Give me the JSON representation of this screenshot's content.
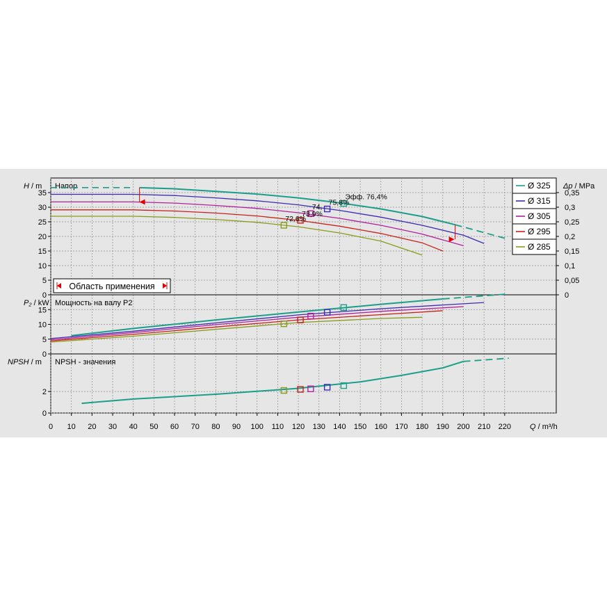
{
  "chart_data": {
    "type": "line",
    "x_axis": {
      "label_symbol": "Q",
      "label_unit": "/ m³/h",
      "range": [
        0,
        245
      ],
      "ticks": [
        0,
        10,
        20,
        30,
        40,
        50,
        60,
        70,
        80,
        90,
        100,
        110,
        120,
        130,
        140,
        150,
        160,
        170,
        180,
        190,
        200,
        210,
        220
      ]
    },
    "legend": {
      "placement": "right",
      "items": [
        {
          "label": "Ø 325",
          "color": "#1a9e8a"
        },
        {
          "label": "Ø 315",
          "color": "#3c2bb0"
        },
        {
          "label": "Ø 305",
          "color": "#b0209a"
        },
        {
          "label": "Ø 295",
          "color": "#c8201a"
        },
        {
          "label": "Ø 285",
          "color": "#8a9a1a"
        }
      ]
    },
    "panels": [
      {
        "id": "head",
        "title": "Напор",
        "ylabel_symbol": "H",
        "ylabel_unit": "/ m",
        "ylim": [
          0,
          40
        ],
        "yticks": [
          0,
          5,
          10,
          15,
          20,
          25,
          30,
          35
        ],
        "y2label_symbol": "Δp",
        "y2label_unit": "/ MPa",
        "y2ticks": [
          "0",
          "0,05",
          "0,1",
          "0,15",
          "0,2",
          "0,25",
          "0,3",
          "0,35"
        ],
        "series": [
          {
            "name": "Ø 325",
            "color": "#1a9e8a",
            "dashed_x": [
              0,
              40
            ],
            "x": [
              43,
              60,
              80,
              100,
              120,
              140,
              160,
              180,
              196
            ],
            "y": [
              36.7,
              36.3,
              35.4,
              34.5,
              33.2,
              31.5,
              29.4,
              26.8,
              24.0
            ],
            "dashed_tail_x": [
              196,
              222
            ],
            "dashed_tail_y": [
              24.0,
              19.0
            ]
          },
          {
            "name": "Ø 315",
            "color": "#3c2bb0",
            "x": [
              0,
              40,
              60,
              80,
              100,
              120,
              140,
              160,
              180,
              200,
              210
            ],
            "y": [
              34.4,
              34.4,
              34.0,
              33.2,
              32.2,
              30.8,
              28.9,
              26.6,
              23.8,
              20.4,
              17.6
            ]
          },
          {
            "name": "Ø 305",
            "color": "#b0209a",
            "x": [
              0,
              40,
              60,
              80,
              100,
              120,
              140,
              160,
              180,
              200
            ],
            "y": [
              31.8,
              31.8,
              31.4,
              30.6,
              29.6,
              28.1,
              26.2,
              23.8,
              20.8,
              16.8
            ]
          },
          {
            "name": "Ø 295",
            "color": "#c8201a",
            "x": [
              0,
              40,
              60,
              80,
              100,
              120,
              140,
              160,
              180,
              190
            ],
            "y": [
              29.1,
              29.1,
              28.7,
              28.0,
              27.0,
              25.5,
              23.5,
              21.0,
              17.8,
              15.0
            ]
          },
          {
            "name": "Ø 285",
            "color": "#8a9a1a",
            "x": [
              0,
              40,
              60,
              80,
              100,
              120,
              140,
              160,
              180
            ],
            "y": [
              26.9,
              26.9,
              26.5,
              25.8,
              24.8,
              23.3,
              21.2,
              18.4,
              13.6
            ]
          }
        ],
        "markers": [
          {
            "series": "Ø 325",
            "x": 142,
            "y": 31.3,
            "label": "Эфф.  76,4%"
          },
          {
            "series": "Ø 315",
            "x": 134,
            "y": 29.4,
            "label": "75,8%"
          },
          {
            "series": "Ø 305",
            "x": 126,
            "y": 27.8,
            "label": "74,"
          },
          {
            "series": "Ø 295",
            "x": 121,
            "y": 25.5,
            "label": "73,9%"
          },
          {
            "series": "Ø 285",
            "x": 113,
            "y": 23.8,
            "label": "72,6%"
          }
        ],
        "region": {
          "label": "Область применения",
          "x_from": 43,
          "x_to": 196
        }
      },
      {
        "id": "power",
        "title": "Мощность на валу P2",
        "ylabel_symbol": "P₂",
        "ylabel_unit": "/ kW",
        "ylim": [
          0,
          20
        ],
        "yticks": [
          0,
          5,
          10,
          15
        ],
        "series": [
          {
            "name": "Ø 325",
            "color": "#1a9e8a",
            "x": [
              10,
              40,
              80,
              120,
              160,
              190
            ],
            "y": [
              6.2,
              8.6,
              11.5,
              14.2,
              16.8,
              18.6
            ],
            "dashed_tail_x": [
              190,
              222
            ],
            "dashed_tail_y": [
              18.6,
              20.3
            ]
          },
          {
            "name": "Ø 315",
            "color": "#3c2bb0",
            "x": [
              0,
              40,
              80,
              120,
              160,
              210
            ],
            "y": [
              5.2,
              7.7,
              10.5,
              13.2,
              15.3,
              17.4
            ]
          },
          {
            "name": "Ø 305",
            "color": "#b0209a",
            "x": [
              0,
              40,
              80,
              120,
              160,
              200
            ],
            "y": [
              4.8,
              7.2,
              9.9,
              12.4,
              14.4,
              16.0
            ]
          },
          {
            "name": "Ø 295",
            "color": "#c8201a",
            "x": [
              0,
              40,
              80,
              120,
              160,
              190
            ],
            "y": [
              4.4,
              6.6,
              9.1,
              11.5,
              13.3,
              14.6
            ]
          },
          {
            "name": "Ø 285",
            "color": "#8a9a1a",
            "x": [
              0,
              40,
              80,
              120,
              160,
              180
            ],
            "y": [
              4.0,
              6.0,
              8.3,
              10.6,
              12.0,
              12.4
            ]
          }
        ],
        "markers": [
          {
            "series": "Ø 325",
            "x": 142,
            "y": 15.7
          },
          {
            "series": "Ø 315",
            "x": 134,
            "y": 14.1
          },
          {
            "series": "Ø 305",
            "x": 126,
            "y": 12.8
          },
          {
            "series": "Ø 295",
            "x": 121,
            "y": 11.5
          },
          {
            "series": "Ø 285",
            "x": 113,
            "y": 10.2
          }
        ]
      },
      {
        "id": "npsh",
        "title": "NPSH - значения",
        "ylabel_symbol": "NPSH",
        "ylabel_unit": "/ m",
        "ylim": [
          0,
          5.5
        ],
        "yticks": [
          0,
          2
        ],
        "series": [
          {
            "name": "Ø 325",
            "color": "#1a9e8a",
            "x": [
              15,
              40,
              80,
              120,
              150,
              170,
              190,
              200
            ],
            "y": [
              0.9,
              1.3,
              1.75,
              2.3,
              2.9,
              3.5,
              4.2,
              4.8
            ],
            "dashed_tail_x": [
              200,
              222
            ],
            "dashed_tail_y": [
              4.8,
              5.1
            ]
          }
        ],
        "markers": [
          {
            "series": "Ø 325",
            "x": 142,
            "y": 2.55
          },
          {
            "series": "Ø 315",
            "x": 134,
            "y": 2.4
          },
          {
            "series": "Ø 305",
            "x": 126,
            "y": 2.25
          },
          {
            "series": "Ø 295",
            "x": 121,
            "y": 2.2
          },
          {
            "series": "Ø 285",
            "x": 113,
            "y": 2.1
          }
        ]
      }
    ]
  }
}
